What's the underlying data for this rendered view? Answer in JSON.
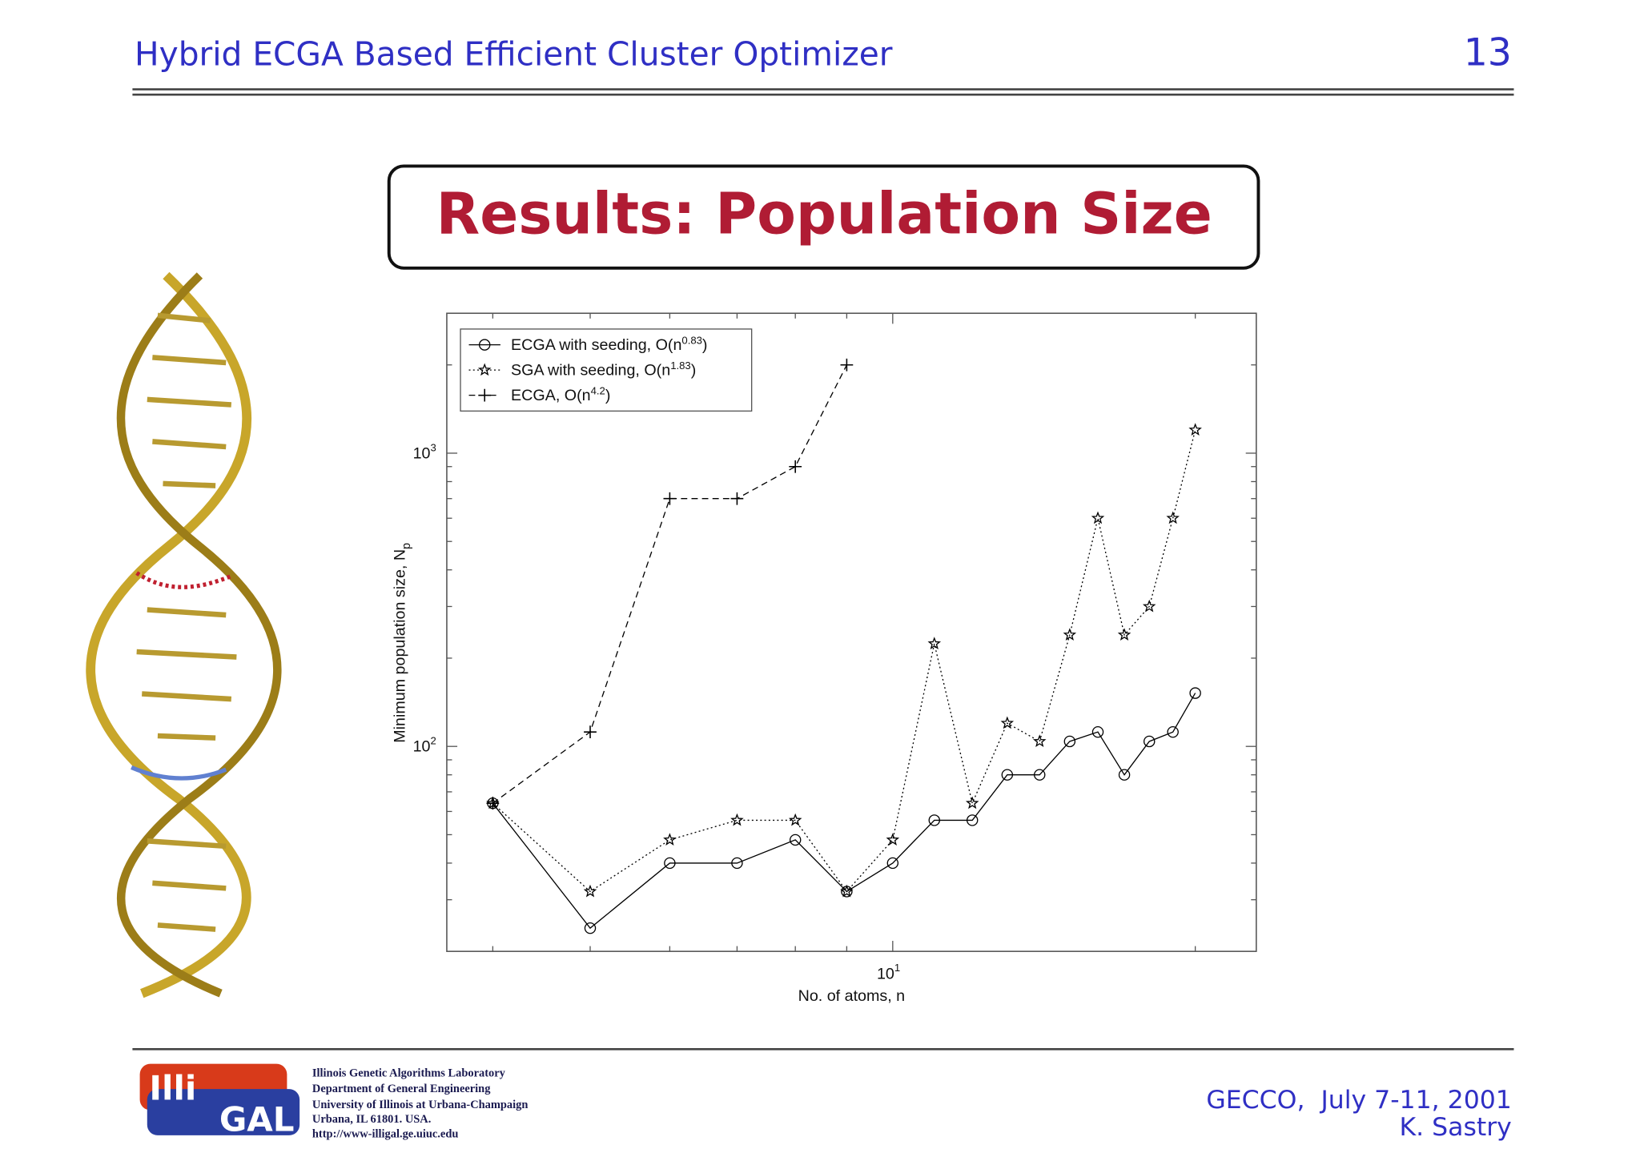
{
  "header": {
    "title": "Hybrid ECGA Based Efficient Cluster Optimizer",
    "page": "13"
  },
  "slide_title": "Results: Population Size",
  "chart_data": {
    "type": "line",
    "xlabel": "No. of atoms, n",
    "ylabel": [
      "Minimum population size, N",
      "p"
    ],
    "x": [
      4,
      5,
      6,
      7,
      8,
      9,
      10,
      11,
      12,
      13,
      14,
      15,
      16,
      17,
      18,
      19,
      20
    ],
    "xscale": "log",
    "yscale": "log",
    "xlim": [
      3.6,
      23
    ],
    "ylim": [
      20,
      3000
    ],
    "xticks": [
      {
        "value": 10,
        "label": [
          "10",
          "1"
        ]
      }
    ],
    "yticks": [
      {
        "value": 100,
        "label": [
          "10",
          "2"
        ]
      },
      {
        "value": 1000,
        "label": [
          "10",
          "3"
        ]
      }
    ],
    "xminorticks": [
      4,
      5,
      6,
      7,
      8,
      9,
      20
    ],
    "yminorticks": [
      30,
      40,
      50,
      60,
      70,
      80,
      90,
      200,
      300,
      400,
      500,
      600,
      700,
      800,
      900,
      2000
    ],
    "legend": "upper left",
    "series": [
      {
        "name": [
          "ECGA with seeding, O(n",
          "0.83",
          ")"
        ],
        "color": "#000000",
        "marker": "circle",
        "dash": "solid",
        "values": [
          64,
          24,
          40,
          40,
          48,
          32,
          40,
          56,
          56,
          80,
          80,
          104,
          112,
          80,
          104,
          112,
          152
        ]
      },
      {
        "name": [
          "SGA with seeding, O(n",
          "1.83",
          ")"
        ],
        "color": "#000000",
        "marker": "star",
        "dash": "dotted",
        "values": [
          64,
          32,
          48,
          56,
          56,
          32,
          48,
          224,
          64,
          120,
          104,
          240,
          600,
          240,
          300,
          600,
          1200
        ]
      },
      {
        "name": [
          "ECGA, O(n",
          "4.2",
          ")"
        ],
        "color": "#000000",
        "marker": "plus",
        "dash": "dashed",
        "values": [
          64,
          112,
          700,
          700,
          900,
          2000,
          null,
          null,
          null,
          null,
          null,
          null,
          null,
          null,
          null,
          null,
          null
        ]
      }
    ]
  },
  "footer": {
    "logo": [
      "Illi",
      "GAL"
    ],
    "lab": [
      "Illinois Genetic Algorithms Laboratory",
      "Department of General Engineering",
      "University of Illinois at Urbana-Champaign",
      "Urbana, IL 61801. USA.",
      "http://www-illigal.ge.uiuc.edu"
    ],
    "conference": "GECCO,  July 7-11, 2001",
    "author": "K. Sastry"
  }
}
